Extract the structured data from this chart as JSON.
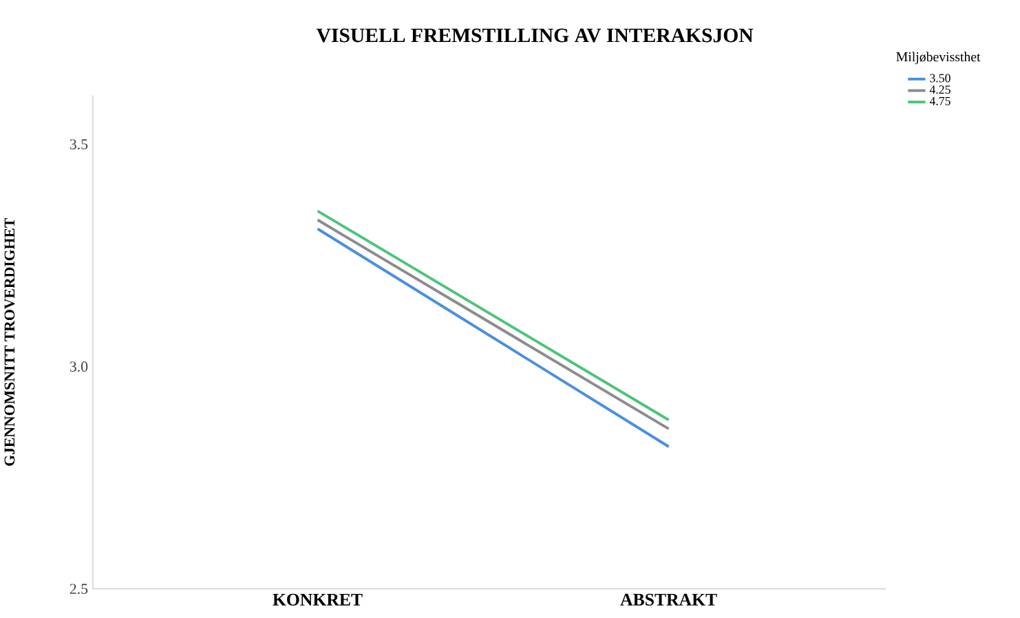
{
  "chart_data": {
    "type": "line",
    "title": "VISUELL FREMSTILLING AV INTERAKSJON",
    "ylabel": "GJENNOMSNITT TROVERDIGHET",
    "legend_title": "Miljøbevissthet",
    "categories": [
      "KONKRET",
      "ABSTRAKT"
    ],
    "series": [
      {
        "name": "3.50",
        "color": "#4a8fe0",
        "values": [
          3.31,
          2.82
        ]
      },
      {
        "name": "4.25",
        "color": "#8c8c8c",
        "values": [
          3.33,
          2.86
        ]
      },
      {
        "name": "4.75",
        "color": "#4cc47a",
        "values": [
          3.35,
          2.88
        ]
      }
    ],
    "ylim": [
      2.5,
      3.61
    ],
    "yticks": [
      2.5,
      {
        "value": 3.0,
        "label": "3.0"
      },
      3.5
    ],
    "legend": "top right"
  }
}
